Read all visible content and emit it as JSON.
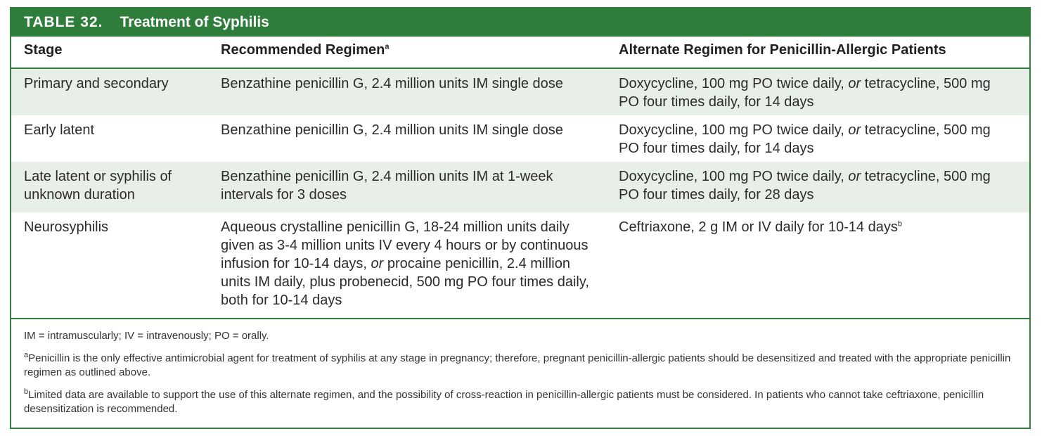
{
  "table": {
    "label": "TABLE 32.",
    "title": "Treatment of Syphilis",
    "headers": {
      "stage": "Stage",
      "recommended": "Recommended Regimen",
      "recommended_sup": "a",
      "alternate": "Alternate Regimen for Penicillin-Allergic Patients"
    },
    "rows": [
      {
        "stage": "Primary and secondary",
        "recommended": "Benzathine penicillin G, 2.4 million units IM single dose",
        "alternate_pre": "Doxycycline, 100 mg PO twice daily, ",
        "alternate_or": "or",
        "alternate_post": " tetracycline, 500 mg PO four times daily, for 14 days"
      },
      {
        "stage": "Early latent",
        "recommended": "Benzathine penicillin G, 2.4 million units IM single dose",
        "alternate_pre": "Doxycycline, 100 mg PO twice daily, ",
        "alternate_or": "or",
        "alternate_post": " tetracycline, 500 mg PO four times daily, for 14 days"
      },
      {
        "stage": "Late latent or syphilis of unknown duration",
        "recommended": "Benzathine penicillin G, 2.4 million units IM at 1-week intervals for 3 doses",
        "alternate_pre": "Doxycycline, 100 mg PO twice daily, ",
        "alternate_or": "or",
        "alternate_post": " tetracycline, 500 mg PO four times daily, for 28 days"
      },
      {
        "stage": "Neurosyphilis",
        "recommended_pre": "Aqueous crystalline penicillin G, 18-24 million units daily given as 3-4 million units IV every 4 hours or by continuous infusion for 10-14 days, ",
        "recommended_or": "or",
        "recommended_post": " procaine penicillin, 2.4 million units IM daily, plus probenecid, 500 mg PO four times daily, both for 10-14 days",
        "alternate": "Ceftriaxone, 2 g IM or IV daily for 10-14 days",
        "alternate_sup": "b"
      }
    ],
    "footnotes": {
      "abbreviations": "IM = intramuscularly; IV = intravenously; PO = orally.",
      "a_mark": "a",
      "a_text": "Penicillin is the only effective antimicrobial agent for treatment of syphilis at any stage in pregnancy; therefore, pregnant penicillin-allergic patients should be desensitized and treated with the appropriate penicillin regimen as outlined above.",
      "b_mark": "b",
      "b_text": "Limited data are available to support the use of this alternate regimen, and the possibility of cross-reaction in penicillin-allergic patients must be considered. In patients who cannot take ceftriaxone, penicillin desensitization is recommended."
    }
  },
  "colors": {
    "accent_green": "#2e7d3a",
    "row_shade": "#e8eee8"
  }
}
